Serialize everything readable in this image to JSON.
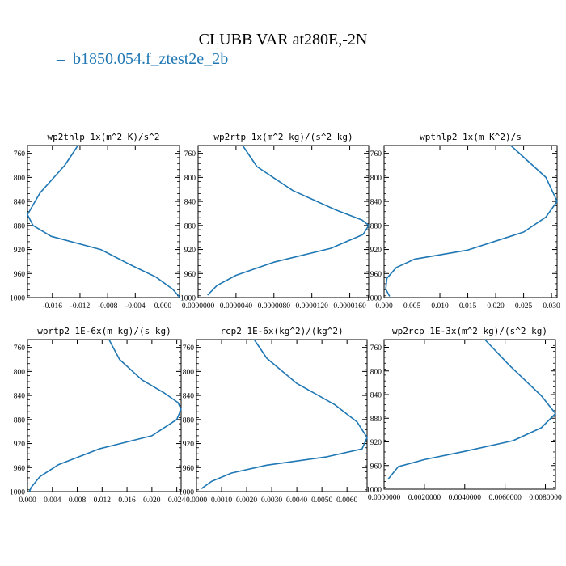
{
  "figure": {
    "title": "CLUBB VAR at280E,-2N",
    "legend_label": "b1850.054.f_ztest2e_2b",
    "line_color": "#1f77b4"
  },
  "chart_data": [
    {
      "type": "line",
      "title": "wp2thlp  1x(m^2 K)/s^2",
      "y_ticks": [
        "760",
        "800",
        "840",
        "880",
        "920",
        "960",
        "1000"
      ],
      "x_ticks": [
        "-0.016",
        "-0.012",
        "-0.008",
        "-0.004",
        "0.000"
      ],
      "xlim": [
        -0.0196,
        0.0024
      ],
      "ylim": [
        1000,
        747
      ],
      "grid": false,
      "series": [
        {
          "x": [
            -0.0123,
            -0.0142,
            -0.0178,
            -0.0196,
            -0.0188,
            -0.0162,
            -0.009,
            -0.0046,
            -0.001,
            0.0014,
            0.0024
          ],
          "y": [
            747,
            780,
            826,
            862,
            880,
            898,
            920,
            946,
            966,
            986,
            999
          ]
        }
      ]
    },
    {
      "type": "line",
      "title": "wp2rtp  1x(m^2 kg)/(s^2 kg)",
      "y_ticks": [
        "760",
        "800",
        "840",
        "880",
        "920",
        "960",
        "1000"
      ],
      "x_ticks": [
        "0.0000000",
        "0.0000040",
        "0.0000080",
        "0.0000120",
        "0.0000160"
      ],
      "xlim": [
        0,
        1.8e-05
      ],
      "ylim": [
        1000,
        747
      ],
      "grid": false,
      "series": [
        {
          "x": [
            4.7e-06,
            6.2e-06,
            1e-05,
            1.45e-05,
            1.73e-05,
            1.8e-05,
            1.74e-05,
            1.4e-05,
            8e-06,
            4e-06,
            2e-06,
            1e-06
          ],
          "y": [
            747,
            782,
            822,
            854,
            871,
            880,
            895,
            918,
            941,
            963,
            980,
            996
          ]
        }
      ]
    },
    {
      "type": "line",
      "title": "wpthlp2  1x(m K^2)/s",
      "y_ticks": [
        "760",
        "800",
        "840",
        "880",
        "920",
        "960",
        "1000"
      ],
      "x_ticks": [
        "0.000",
        "0.005",
        "0.010",
        "0.015",
        "0.020",
        "0.025",
        "0.030"
      ],
      "xlim": [
        0,
        0.031
      ],
      "ylim": [
        1000,
        747
      ],
      "grid": false,
      "series": [
        {
          "x": [
            0.0227,
            0.029,
            0.031,
            0.029,
            0.025,
            0.015,
            0.0055,
            0.0022,
            0.0005,
            0.0003,
            0.001
          ],
          "y": [
            747,
            800,
            840,
            866,
            891,
            921,
            936,
            950,
            968,
            986,
            998
          ]
        }
      ]
    },
    {
      "type": "line",
      "title": "wprtp2  1E-6x(m kg)/(s kg)",
      "y_ticks": [
        "760",
        "800",
        "840",
        "880",
        "920",
        "960",
        "1000"
      ],
      "x_ticks": [
        "0.000",
        "0.004",
        "0.008",
        "0.012",
        "0.016",
        "0.020",
        "0.024"
      ],
      "xlim": [
        0,
        0.0247
      ],
      "ylim": [
        1000,
        747
      ],
      "grid": false,
      "series": [
        {
          "x": [
            0.0131,
            0.0148,
            0.0184,
            0.022,
            0.0242,
            0.0247,
            0.024,
            0.02,
            0.0115,
            0.005,
            0.002,
            0.0006,
            0.0003
          ],
          "y": [
            747,
            780,
            814,
            836,
            852,
            863,
            880,
            907,
            929,
            955,
            975,
            993,
            1000
          ]
        }
      ]
    },
    {
      "type": "line",
      "title": "rcp2  1E-6x(kg^2)/(kg^2)",
      "y_ticks": [
        "760",
        "800",
        "840",
        "880",
        "920",
        "960",
        "1000"
      ],
      "x_ticks": [
        "0.0000",
        "0.0010",
        "0.0020",
        "0.0030",
        "0.0040",
        "0.0050",
        "0.0060"
      ],
      "xlim": [
        0,
        0.0068
      ],
      "ylim": [
        1000,
        747
      ],
      "grid": false,
      "series": [
        {
          "x": [
            0.0023,
            0.0028,
            0.004,
            0.0055,
            0.0064,
            0.0068,
            0.0066,
            0.0052,
            0.0028,
            0.0014,
            0.0006,
            0.0002
          ],
          "y": [
            747,
            778,
            820,
            855,
            884,
            910,
            929,
            942,
            956,
            969,
            983,
            995
          ]
        }
      ]
    },
    {
      "type": "line",
      "title": "wp2rcp  1E-3x(m^2 kg)/(s^2 kg)",
      "y_ticks": [
        "760",
        "800",
        "840",
        "880",
        "920",
        "960",
        "1000"
      ],
      "x_ticks": [
        "0.0000000",
        "0.0020000",
        "0.0040000",
        "0.0060000",
        "0.0080000"
      ],
      "xlim": [
        0,
        0.0085
      ],
      "ylim": [
        1000,
        747
      ],
      "grid": false,
      "series": [
        {
          "x": [
            0.005,
            0.0062,
            0.0078,
            0.0085,
            0.0078,
            0.0064,
            0.004,
            0.002,
            0.0007,
            0.0002
          ],
          "y": [
            747,
            790,
            842,
            872,
            896,
            918,
            936,
            950,
            962,
            983
          ]
        }
      ]
    }
  ]
}
